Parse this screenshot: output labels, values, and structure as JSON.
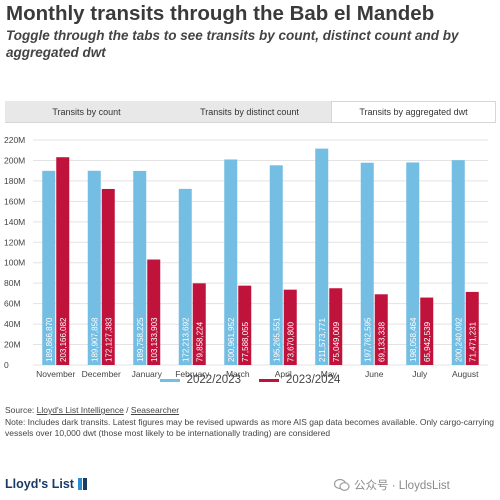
{
  "header": {
    "title": "Monthly transits through the Bab el Mandeb",
    "subtitle": "Toggle through the tabs to see transits by count, distinct count and by aggregated dwt"
  },
  "tabs": [
    {
      "label": "Transits by count",
      "active": false
    },
    {
      "label": "Transits by distinct count",
      "active": false
    },
    {
      "label": "Transits by aggregated dwt",
      "active": true
    }
  ],
  "colors": {
    "series_2022": "#74bde3",
    "series_2023": "#c0133c",
    "grid": "#e3e3e3"
  },
  "chart_data": {
    "type": "bar",
    "categories": [
      "November",
      "December",
      "January",
      "February",
      "March",
      "April",
      "May",
      "June",
      "July",
      "August"
    ],
    "series": [
      {
        "name": "2022/2023",
        "values": [
          189866870,
          189907858,
          189758225,
          172213692,
          200961952,
          195265551,
          211573771,
          197762595,
          198058464,
          200240092
        ],
        "labels": [
          "189,866,870",
          "189,907,858",
          "189,758,225",
          "172,213,692",
          "200,961,952",
          "195,265,551",
          "211,573,771",
          "197,762,595",
          "198,058,464",
          "200,240,092"
        ]
      },
      {
        "name": "2023/2024",
        "values": [
          203166082,
          172127383,
          103133903,
          79858224,
          77588055,
          73670800,
          75049009,
          69133338,
          65942539,
          71471231
        ],
        "labels": [
          "203,166,082",
          "172,127,383",
          "103,133,903",
          "79,858,224",
          "77,588,055",
          "73,670,800",
          "75,049,009",
          "69,133,338",
          "65,942,539",
          "71,471,231"
        ]
      }
    ],
    "yticks": [
      "0",
      "20M",
      "40M",
      "60M",
      "80M",
      "100M",
      "120M",
      "140M",
      "160M",
      "180M",
      "200M",
      "220M"
    ],
    "ylim": [
      0,
      220000000
    ],
    "grid": true,
    "legend_position": "bottom-center"
  },
  "footer": {
    "source_prefix": "Source: ",
    "source_link1": "Lloyd's List Intelligence",
    "source_sep": " / ",
    "source_link2": "Seasearcher",
    "note": "Note: Includes dark transits. Latest figures may be revised upwards as more AIS gap data becomes available. Only cargo-carrying vessels over 10,000 dwt (those most likely to be internationally trading) are considered",
    "logo_text": "Lloyd's List",
    "watermark_text": "公众号 · LloydsList"
  }
}
